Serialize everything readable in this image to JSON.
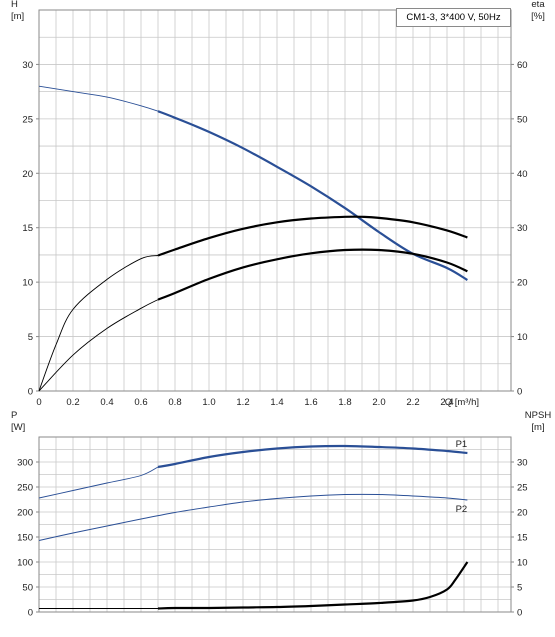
{
  "title_box": "CM1-3, 3*400 V, 50Hz",
  "colors": {
    "blue": "#2a4f96",
    "black": "#000000",
    "grid": "#c8c8c8",
    "frame": "#8a8a8a"
  },
  "chart_data": [
    {
      "type": "line",
      "title": "CM1-3, 3*400 V, 50Hz",
      "xlabel": "Q [m³/h]",
      "ylabel_left": "H",
      "ylabel_left_unit": "[m]",
      "ylabel_right": "eta",
      "ylabel_right_unit": "[%]",
      "xlim": [
        0,
        2.6
      ],
      "ylim_left": [
        0,
        35
      ],
      "ylim_right": [
        0,
        70
      ],
      "x_ticks": [
        "0",
        "0.2",
        "0.4",
        "0.6",
        "0.8",
        "1.0",
        "1.2",
        "1.4",
        "1.6",
        "1.8",
        "2.0",
        "2.2",
        "2.4"
      ],
      "y_left_ticks": [
        "0",
        "5",
        "10",
        "15",
        "20",
        "25",
        "30"
      ],
      "y_right_ticks": [
        "0",
        "10",
        "20",
        "30",
        "40",
        "50",
        "60"
      ],
      "grid": true,
      "series": [
        {
          "color": "#2a4f96",
          "axis": "left",
          "x": [
            0,
            0.2,
            0.4,
            0.6,
            0.7,
            0.8,
            1.0,
            1.2,
            1.4,
            1.6,
            1.8,
            2.0,
            2.2,
            2.4,
            2.52
          ],
          "y": [
            28.0,
            27.5,
            27.0,
            26.2,
            25.7,
            25.1,
            23.8,
            22.3,
            20.6,
            18.8,
            16.8,
            14.6,
            12.6,
            11.3,
            10.2
          ],
          "bold_from": 0.7
        },
        {
          "color": "#000000",
          "axis": "right",
          "x": [
            0,
            0.1,
            0.2,
            0.4,
            0.6,
            0.7,
            0.8,
            1.0,
            1.2,
            1.4,
            1.6,
            1.8,
            1.9,
            2.0,
            2.2,
            2.4,
            2.52
          ],
          "y": [
            0,
            8.5,
            15.0,
            20.5,
            24.3,
            24.9,
            26.0,
            28.1,
            29.8,
            31.0,
            31.7,
            32.0,
            32.0,
            31.8,
            31.0,
            29.5,
            28.2
          ],
          "bold_from": 0.7
        },
        {
          "color": "#000000",
          "axis": "right",
          "x": [
            0,
            0.2,
            0.4,
            0.6,
            0.7,
            0.8,
            1.0,
            1.2,
            1.4,
            1.6,
            1.8,
            2.0,
            2.2,
            2.4,
            2.52
          ],
          "y": [
            0,
            6.6,
            11.5,
            15.2,
            16.8,
            18.0,
            20.6,
            22.7,
            24.2,
            25.3,
            25.9,
            25.9,
            25.2,
            23.6,
            22.0
          ],
          "bold_from": 0.7
        }
      ]
    },
    {
      "type": "line",
      "xlabel": "",
      "ylabel_left": "P",
      "ylabel_left_unit": "[W]",
      "ylabel_right": "NPSH",
      "ylabel_right_unit": "[m]",
      "xlim": [
        0,
        2.6
      ],
      "ylim_left": [
        0,
        350
      ],
      "ylim_right": [
        0,
        35
      ],
      "y_left_ticks": [
        "0",
        "50",
        "100",
        "150",
        "200",
        "250",
        "300"
      ],
      "y_right_ticks": [
        "0",
        "5",
        "10",
        "15",
        "20",
        "25",
        "30"
      ],
      "grid": true,
      "series": [
        {
          "name": "P1",
          "color": "#2a4f96",
          "axis": "left",
          "x": [
            0,
            0.2,
            0.4,
            0.6,
            0.7,
            0.8,
            1.0,
            1.2,
            1.4,
            1.6,
            1.8,
            2.0,
            2.2,
            2.4,
            2.52
          ],
          "y": [
            228,
            243,
            258,
            273,
            290,
            296,
            310,
            320,
            327,
            331,
            332,
            330,
            327,
            322,
            318
          ],
          "bold_from": 0.7
        },
        {
          "name": "P2",
          "color": "#2a4f96",
          "axis": "left",
          "x": [
            0,
            0.2,
            0.4,
            0.6,
            0.8,
            1.0,
            1.2,
            1.4,
            1.6,
            1.8,
            2.0,
            2.2,
            2.4,
            2.52
          ],
          "y": [
            143,
            158,
            172,
            186,
            199,
            210,
            220,
            227,
            232,
            235,
            235,
            232,
            228,
            224
          ]
        },
        {
          "color": "#000000",
          "axis": "right",
          "x": [
            0,
            0.7,
            0.8,
            1.0,
            1.2,
            1.4,
            1.6,
            1.8,
            2.0,
            2.2,
            2.3,
            2.4,
            2.45,
            2.52
          ],
          "y": [
            0.7,
            0.7,
            0.8,
            0.8,
            0.9,
            1.0,
            1.2,
            1.5,
            1.8,
            2.3,
            3.0,
            4.5,
            6.5,
            10.0
          ],
          "thin_until": 0.7,
          "bold_from": 0.7
        }
      ]
    }
  ]
}
